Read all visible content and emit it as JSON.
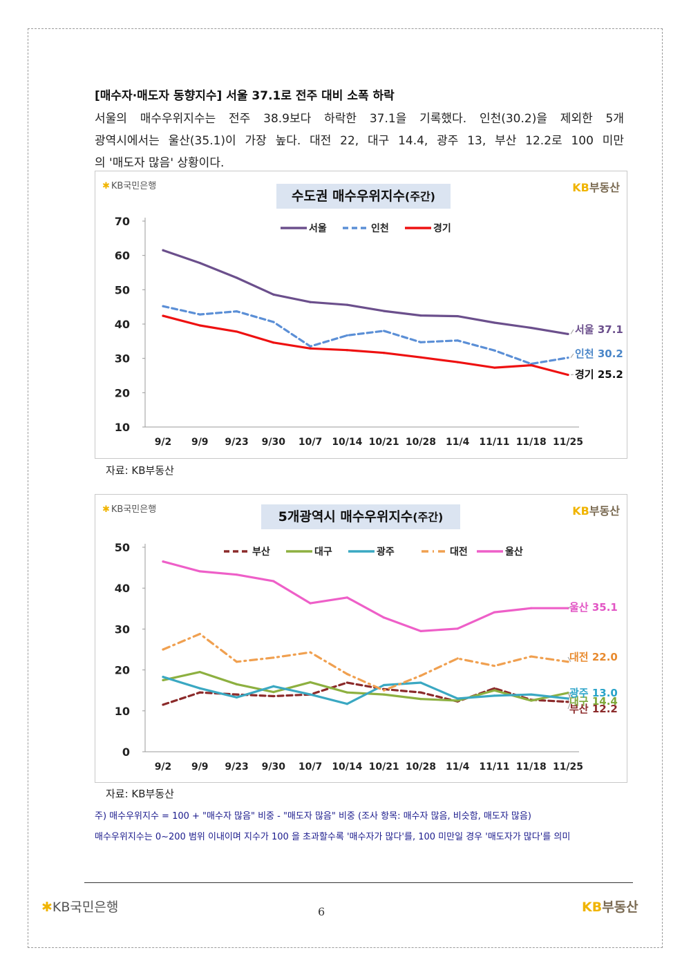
{
  "heading": "[매수자·매도자 동향지수] 서울 37.1로 전주 대비 소폭 하락",
  "paragraph_lines": [
    "서울의 매수우위지수는 전주 38.9보다 하락한 37.1을 기록했다. 인천(30.2)을 제외한 5개",
    "광역시에서는 울산(35.1)이 가장 높다. 대전 22, 대구 14.4, 광주 13, 부산 12.2로 100 미만",
    "의 '매도자 많음' 상황이다."
  ],
  "logos": {
    "kb_bank": "KB국민은행",
    "kb_bank_star": "✱",
    "kb_realestate_kb": "KB",
    "kb_realestate_rest": "부동산"
  },
  "source_label": "자료: KB부동산",
  "notes": [
    "주) 매수우위지수 = 100 + \"매수자 많음\" 비중 - \"매도자 많음\" 비중  (조사 항목: 매수자 많음, 비슷함, 매도자 많음)",
    "매수우위지수는 0~200 범위 이내이며 지수가 100 을 초과할수록 '매수자가 많다'를, 100 미만일 경우 '매도자가 많다'를 의미"
  ],
  "page_number": "6",
  "chart_data": [
    {
      "type": "line",
      "title": "수도권 매수우위지수",
      "title_suffix": "(주간)",
      "categories": [
        "9/2",
        "9/9",
        "9/23",
        "9/30",
        "10/7",
        "10/14",
        "10/21",
        "10/28",
        "11/4",
        "11/11",
        "11/18",
        "11/25"
      ],
      "ylim": [
        10,
        70
      ],
      "yticks": [
        10,
        20,
        30,
        40,
        50,
        60,
        70
      ],
      "legend_position": "top-center",
      "series": [
        {
          "name": "서울",
          "color": "#6b4f8c",
          "dash": "solid",
          "values": [
            61.5,
            57.8,
            53.5,
            48.6,
            46.4,
            45.6,
            43.8,
            42.5,
            42.3,
            40.4,
            38.9,
            37.1
          ],
          "end_label": "서울 37.1",
          "end_label_color": "#6b4f8c"
        },
        {
          "name": "인천",
          "color": "#5b8fd6",
          "dash": "dash",
          "values": [
            45.2,
            42.8,
            43.7,
            40.6,
            33.5,
            36.7,
            38.0,
            34.7,
            35.2,
            32.3,
            28.4,
            30.2
          ],
          "end_label": "인천 30.2",
          "end_label_color": "#4a86c8"
        },
        {
          "name": "경기",
          "color": "#ee1111",
          "dash": "solid",
          "values": [
            42.4,
            39.6,
            37.8,
            34.6,
            32.9,
            32.4,
            31.6,
            30.3,
            28.9,
            27.3,
            28.0,
            25.2
          ],
          "end_label": "경기 25.2",
          "end_label_color": "#111111"
        }
      ]
    },
    {
      "type": "line",
      "title": "5개광역시 매수우위지수",
      "title_suffix": "(주간)",
      "categories": [
        "9/2",
        "9/9",
        "9/23",
        "9/30",
        "10/7",
        "10/14",
        "10/21",
        "10/28",
        "11/4",
        "11/11",
        "11/18",
        "11/25"
      ],
      "ylim": [
        0,
        50
      ],
      "yticks": [
        0,
        10,
        20,
        30,
        40,
        50
      ],
      "legend_position": "top-center",
      "series": [
        {
          "name": "부산",
          "color": "#8b2a2a",
          "dash": "dash",
          "values": [
            11.5,
            14.5,
            14.0,
            13.6,
            14.0,
            16.9,
            15.3,
            14.5,
            12.3,
            15.5,
            12.7,
            12.2
          ],
          "end_label": "부산 12.2",
          "end_label_color": "#8b2a2a"
        },
        {
          "name": "대구",
          "color": "#8db040",
          "dash": "solid",
          "values": [
            17.5,
            19.5,
            16.5,
            14.6,
            17.0,
            14.5,
            14.0,
            12.9,
            12.5,
            15.0,
            12.5,
            14.4
          ],
          "end_label": "대구 14.4",
          "end_label_color": "#7ea83a"
        },
        {
          "name": "광주",
          "color": "#3aa8c2",
          "dash": "solid",
          "values": [
            18.3,
            15.5,
            13.3,
            16.0,
            14.0,
            11.7,
            16.3,
            16.9,
            13.0,
            13.7,
            14.0,
            13.0
          ],
          "end_label": "광주 13.0",
          "end_label_color": "#29a3c8"
        },
        {
          "name": "대전",
          "color": "#f0a050",
          "dash": "dashdot",
          "values": [
            25.0,
            28.8,
            22.0,
            23.0,
            24.3,
            19.0,
            15.0,
            18.6,
            22.8,
            21.0,
            23.3,
            22.0
          ],
          "end_label": "대전 22.0",
          "end_label_color": "#e88a2e"
        },
        {
          "name": "울산",
          "color": "#ee5fc8",
          "dash": "solid",
          "values": [
            46.5,
            44.1,
            43.3,
            41.7,
            36.3,
            37.7,
            32.8,
            29.5,
            30.1,
            34.1,
            35.1,
            35.1
          ],
          "end_label": "울산 35.1",
          "end_label_color": "#e255c4"
        }
      ]
    }
  ]
}
